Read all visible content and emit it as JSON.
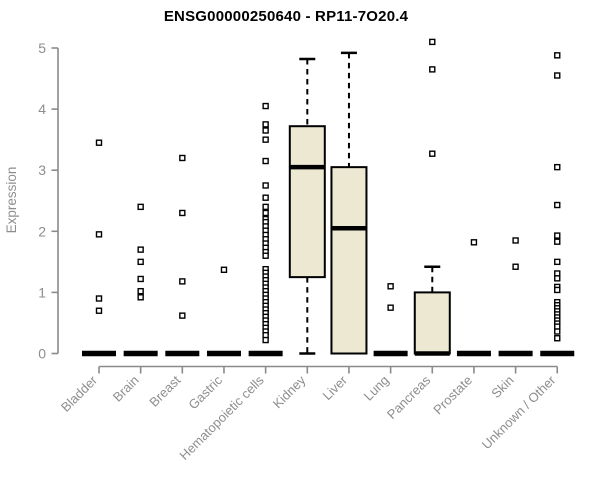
{
  "page": {
    "background": "#ffffff"
  },
  "chart_data": {
    "type": "box",
    "title": "ENSG00000250640 - RP11-7O20.4",
    "ylabel": "Expression",
    "xlabel": "",
    "ylim": [
      0,
      5
    ],
    "yticks": [
      0,
      1,
      2,
      3,
      4,
      5
    ],
    "grid": false,
    "legend": "none",
    "colors": {
      "box_fill": "#ede8d2",
      "box_stroke": "#000000",
      "axis": "#8a8a8a",
      "tick_label": "#8e8e8e",
      "title": "#000000",
      "background": "#ffffff"
    },
    "categories": [
      "Bladder",
      "Brain",
      "Breast",
      "Gastric",
      "Hematopoietic cells",
      "Kidney",
      "Liver",
      "Lung",
      "Pancreas",
      "Prostate",
      "Skin",
      "Unknown / Other"
    ],
    "series": [
      {
        "category": "Bladder",
        "q1": 0,
        "median": 0,
        "q3": 0,
        "whisker_low": 0,
        "whisker_high": 0,
        "outliers": [
          3.45,
          1.95,
          0.9,
          0.7
        ]
      },
      {
        "category": "Brain",
        "q1": 0,
        "median": 0,
        "q3": 0,
        "whisker_low": 0,
        "whisker_high": 0,
        "outliers": [
          2.4,
          1.7,
          1.5,
          1.22,
          1.02,
          0.92
        ]
      },
      {
        "category": "Breast",
        "q1": 0,
        "median": 0,
        "q3": 0,
        "whisker_low": 0,
        "whisker_high": 0,
        "outliers": [
          3.2,
          2.3,
          1.18,
          0.62
        ]
      },
      {
        "category": "Gastric",
        "q1": 0,
        "median": 0,
        "q3": 0,
        "whisker_low": 0,
        "whisker_high": 0,
        "outliers": [
          1.37
        ]
      },
      {
        "category": "Hematopoietic cells",
        "q1": 0,
        "median": 0,
        "q3": 0,
        "whisker_low": 0,
        "whisker_high": 0,
        "outliers": [
          4.05,
          3.75,
          3.65,
          3.5,
          3.15,
          2.75,
          2.55,
          2.4,
          2.3,
          2.2,
          2.15,
          2.08,
          2.01,
          1.94,
          1.87,
          1.8,
          1.73,
          1.66,
          1.6,
          1.38,
          1.32,
          1.26,
          1.2,
          1.14,
          1.08,
          1.02,
          0.96,
          0.9,
          0.84,
          0.78,
          0.72,
          0.66,
          0.6,
          0.54,
          0.48,
          0.42,
          0.36,
          0.3,
          0.22
        ]
      },
      {
        "category": "Kidney",
        "q1": 1.25,
        "median": 3.05,
        "q3": 3.72,
        "whisker_low": 0,
        "whisker_high": 4.82,
        "outliers": []
      },
      {
        "category": "Liver",
        "q1": 0,
        "median": 2.05,
        "q3": 3.05,
        "whisker_low": 0,
        "whisker_high": 4.92,
        "outliers": []
      },
      {
        "category": "Lung",
        "q1": 0,
        "median": 0,
        "q3": 0,
        "whisker_low": 0,
        "whisker_high": 0,
        "outliers": [
          1.1,
          0.75
        ]
      },
      {
        "category": "Pancreas",
        "q1": 0,
        "median": 0,
        "q3": 1.0,
        "whisker_low": 0,
        "whisker_high": 1.42,
        "outliers": [
          5.1,
          4.65,
          3.27
        ]
      },
      {
        "category": "Prostate",
        "q1": 0,
        "median": 0,
        "q3": 0,
        "whisker_low": 0,
        "whisker_high": 0,
        "outliers": [
          1.82
        ]
      },
      {
        "category": "Skin",
        "q1": 0,
        "median": 0,
        "q3": 0,
        "whisker_low": 0,
        "whisker_high": 0,
        "outliers": [
          1.85,
          1.42
        ]
      },
      {
        "category": "Unknown / Other",
        "q1": 0,
        "median": 0,
        "q3": 0,
        "whisker_low": 0,
        "whisker_high": 0,
        "outliers": [
          4.88,
          4.55,
          3.05,
          2.43,
          1.93,
          1.83,
          1.5,
          1.31,
          1.23,
          1.09,
          1.04,
          0.84,
          0.79,
          0.74,
          0.69,
          0.64,
          0.59,
          0.54,
          0.49,
          0.44,
          0.36,
          0.25
        ]
      }
    ]
  }
}
